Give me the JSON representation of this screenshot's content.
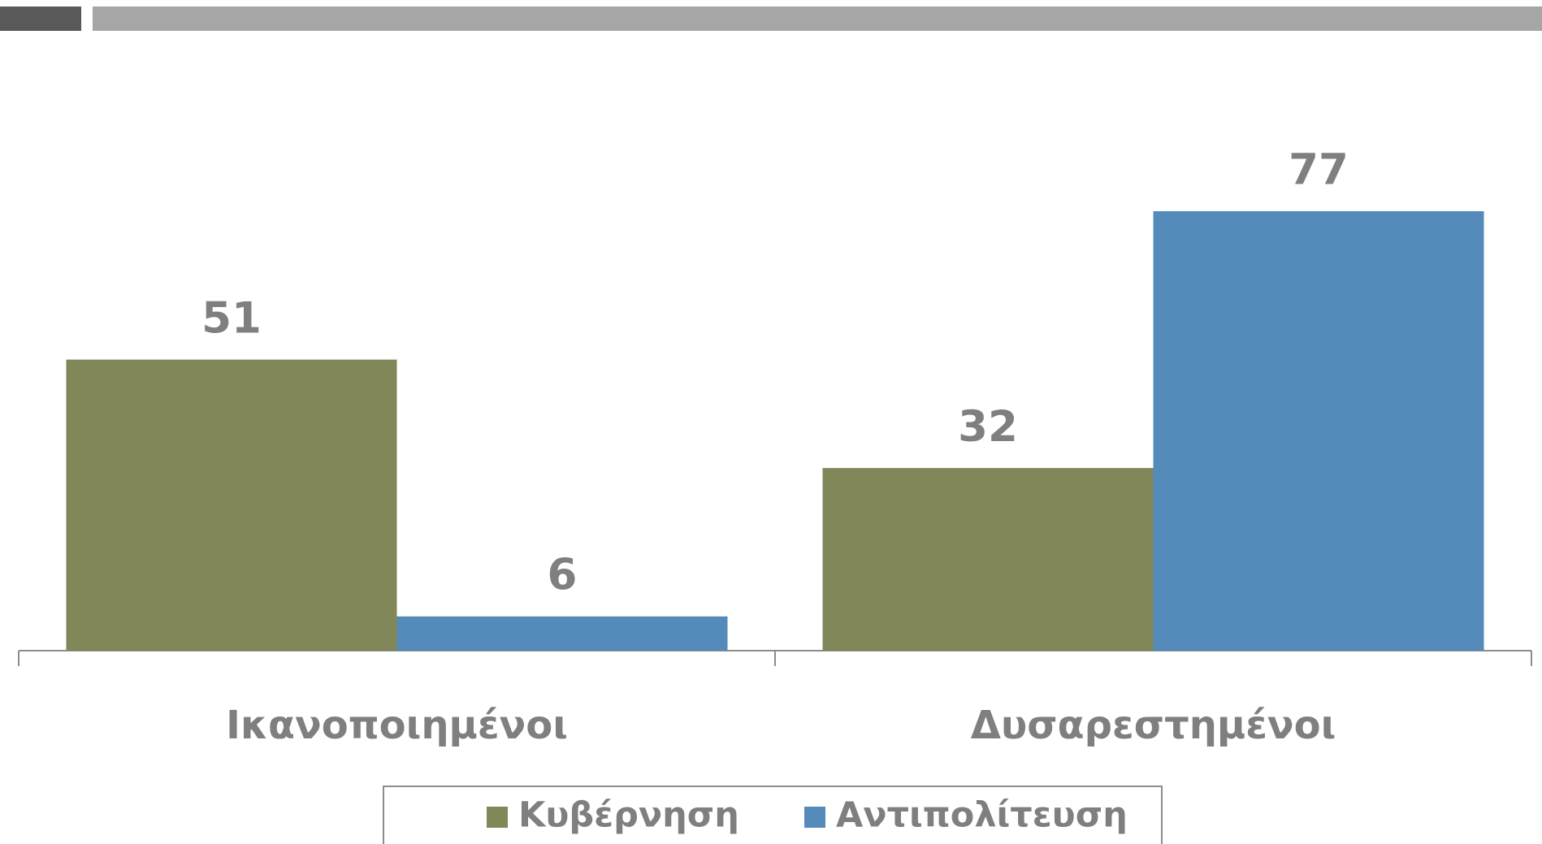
{
  "chart_data": {
    "type": "bar",
    "categories": [
      "Ικανοποιημένοι",
      "Δυσαρεστημένοι"
    ],
    "series": [
      {
        "name": "Κυβέρνηση",
        "color": "#82875a",
        "values": [
          51,
          32
        ]
      },
      {
        "name": "Αντιπολίτευση",
        "color": "#548bbb",
        "values": [
          6,
          77
        ]
      }
    ],
    "legend": "bottom"
  }
}
